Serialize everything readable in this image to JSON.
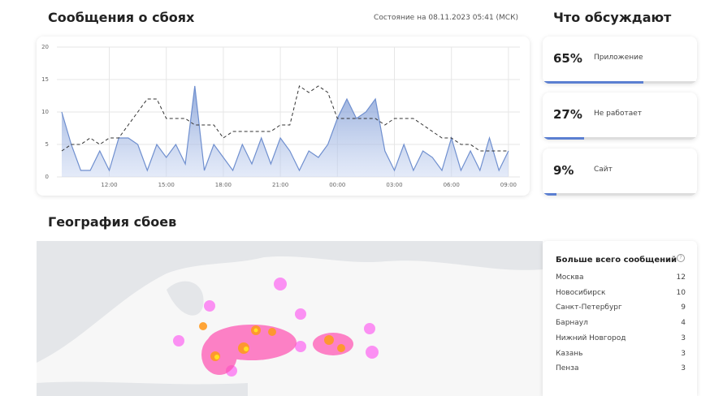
{
  "header": {
    "title": "Сообщения о сбоях",
    "status": "Состояние на 08.11.2023 05:41 (МСК)"
  },
  "chart_data": {
    "type": "line",
    "categories": [
      null,
      null,
      null,
      null,
      null,
      "12:00",
      null,
      null,
      null,
      null,
      null,
      "15:00",
      null,
      null,
      null,
      null,
      null,
      "18:00",
      null,
      null,
      null,
      null,
      null,
      "21:00",
      null,
      null,
      null,
      null,
      null,
      "00:00",
      null,
      null,
      null,
      null,
      null,
      "03:00",
      null,
      null,
      null,
      null,
      null,
      "06:00",
      null,
      null,
      null,
      null,
      null,
      "09:00"
    ],
    "series": [
      {
        "color": "#6f8fcf",
        "area": true,
        "values": [
          10,
          5,
          1,
          1,
          4,
          1,
          6,
          6,
          5,
          1,
          5,
          3,
          5,
          2,
          14,
          1,
          5,
          3,
          1,
          5,
          2,
          6,
          2,
          6,
          4,
          1,
          4,
          3,
          5,
          9,
          12,
          9,
          10,
          12,
          4,
          1,
          5,
          1,
          4,
          3,
          1,
          6,
          1,
          4,
          1,
          6,
          1,
          4
        ]
      },
      {
        "color": "#333333",
        "dash": true,
        "values": [
          4,
          5,
          5,
          6,
          5,
          6,
          6,
          8,
          10,
          12,
          12,
          9,
          9,
          9,
          8,
          8,
          8,
          6,
          7,
          7,
          7,
          7,
          7,
          8,
          8,
          14,
          13,
          14,
          13,
          9,
          9,
          9,
          9,
          9,
          8,
          9,
          9,
          9,
          8,
          7,
          6,
          6,
          5,
          5,
          4,
          4,
          4,
          4
        ]
      }
    ],
    "ylim": [
      0,
      20
    ],
    "yticks": [
      0,
      5,
      10,
      15,
      20
    ],
    "grid": true
  },
  "topics": {
    "title": "Что обсуждают",
    "items": [
      {
        "percent": 65,
        "percent_label": "65%",
        "label": "Приложение"
      },
      {
        "percent": 27,
        "percent_label": "27%",
        "label": "Не работает"
      },
      {
        "percent": 9,
        "percent_label": "9%",
        "label": "Сайт"
      }
    ]
  },
  "geo": {
    "title": "География сбоев",
    "list_title": "Больше всего сообщений",
    "rows": [
      [
        "Москва",
        "12"
      ],
      [
        "Новосибирск",
        "10"
      ],
      [
        "Санкт-Петербург",
        "9"
      ],
      [
        "Барнаул",
        "4"
      ],
      [
        "Нижний Новгород",
        "3"
      ],
      [
        "Казань",
        "3"
      ],
      [
        "Пенза",
        "3"
      ]
    ]
  }
}
